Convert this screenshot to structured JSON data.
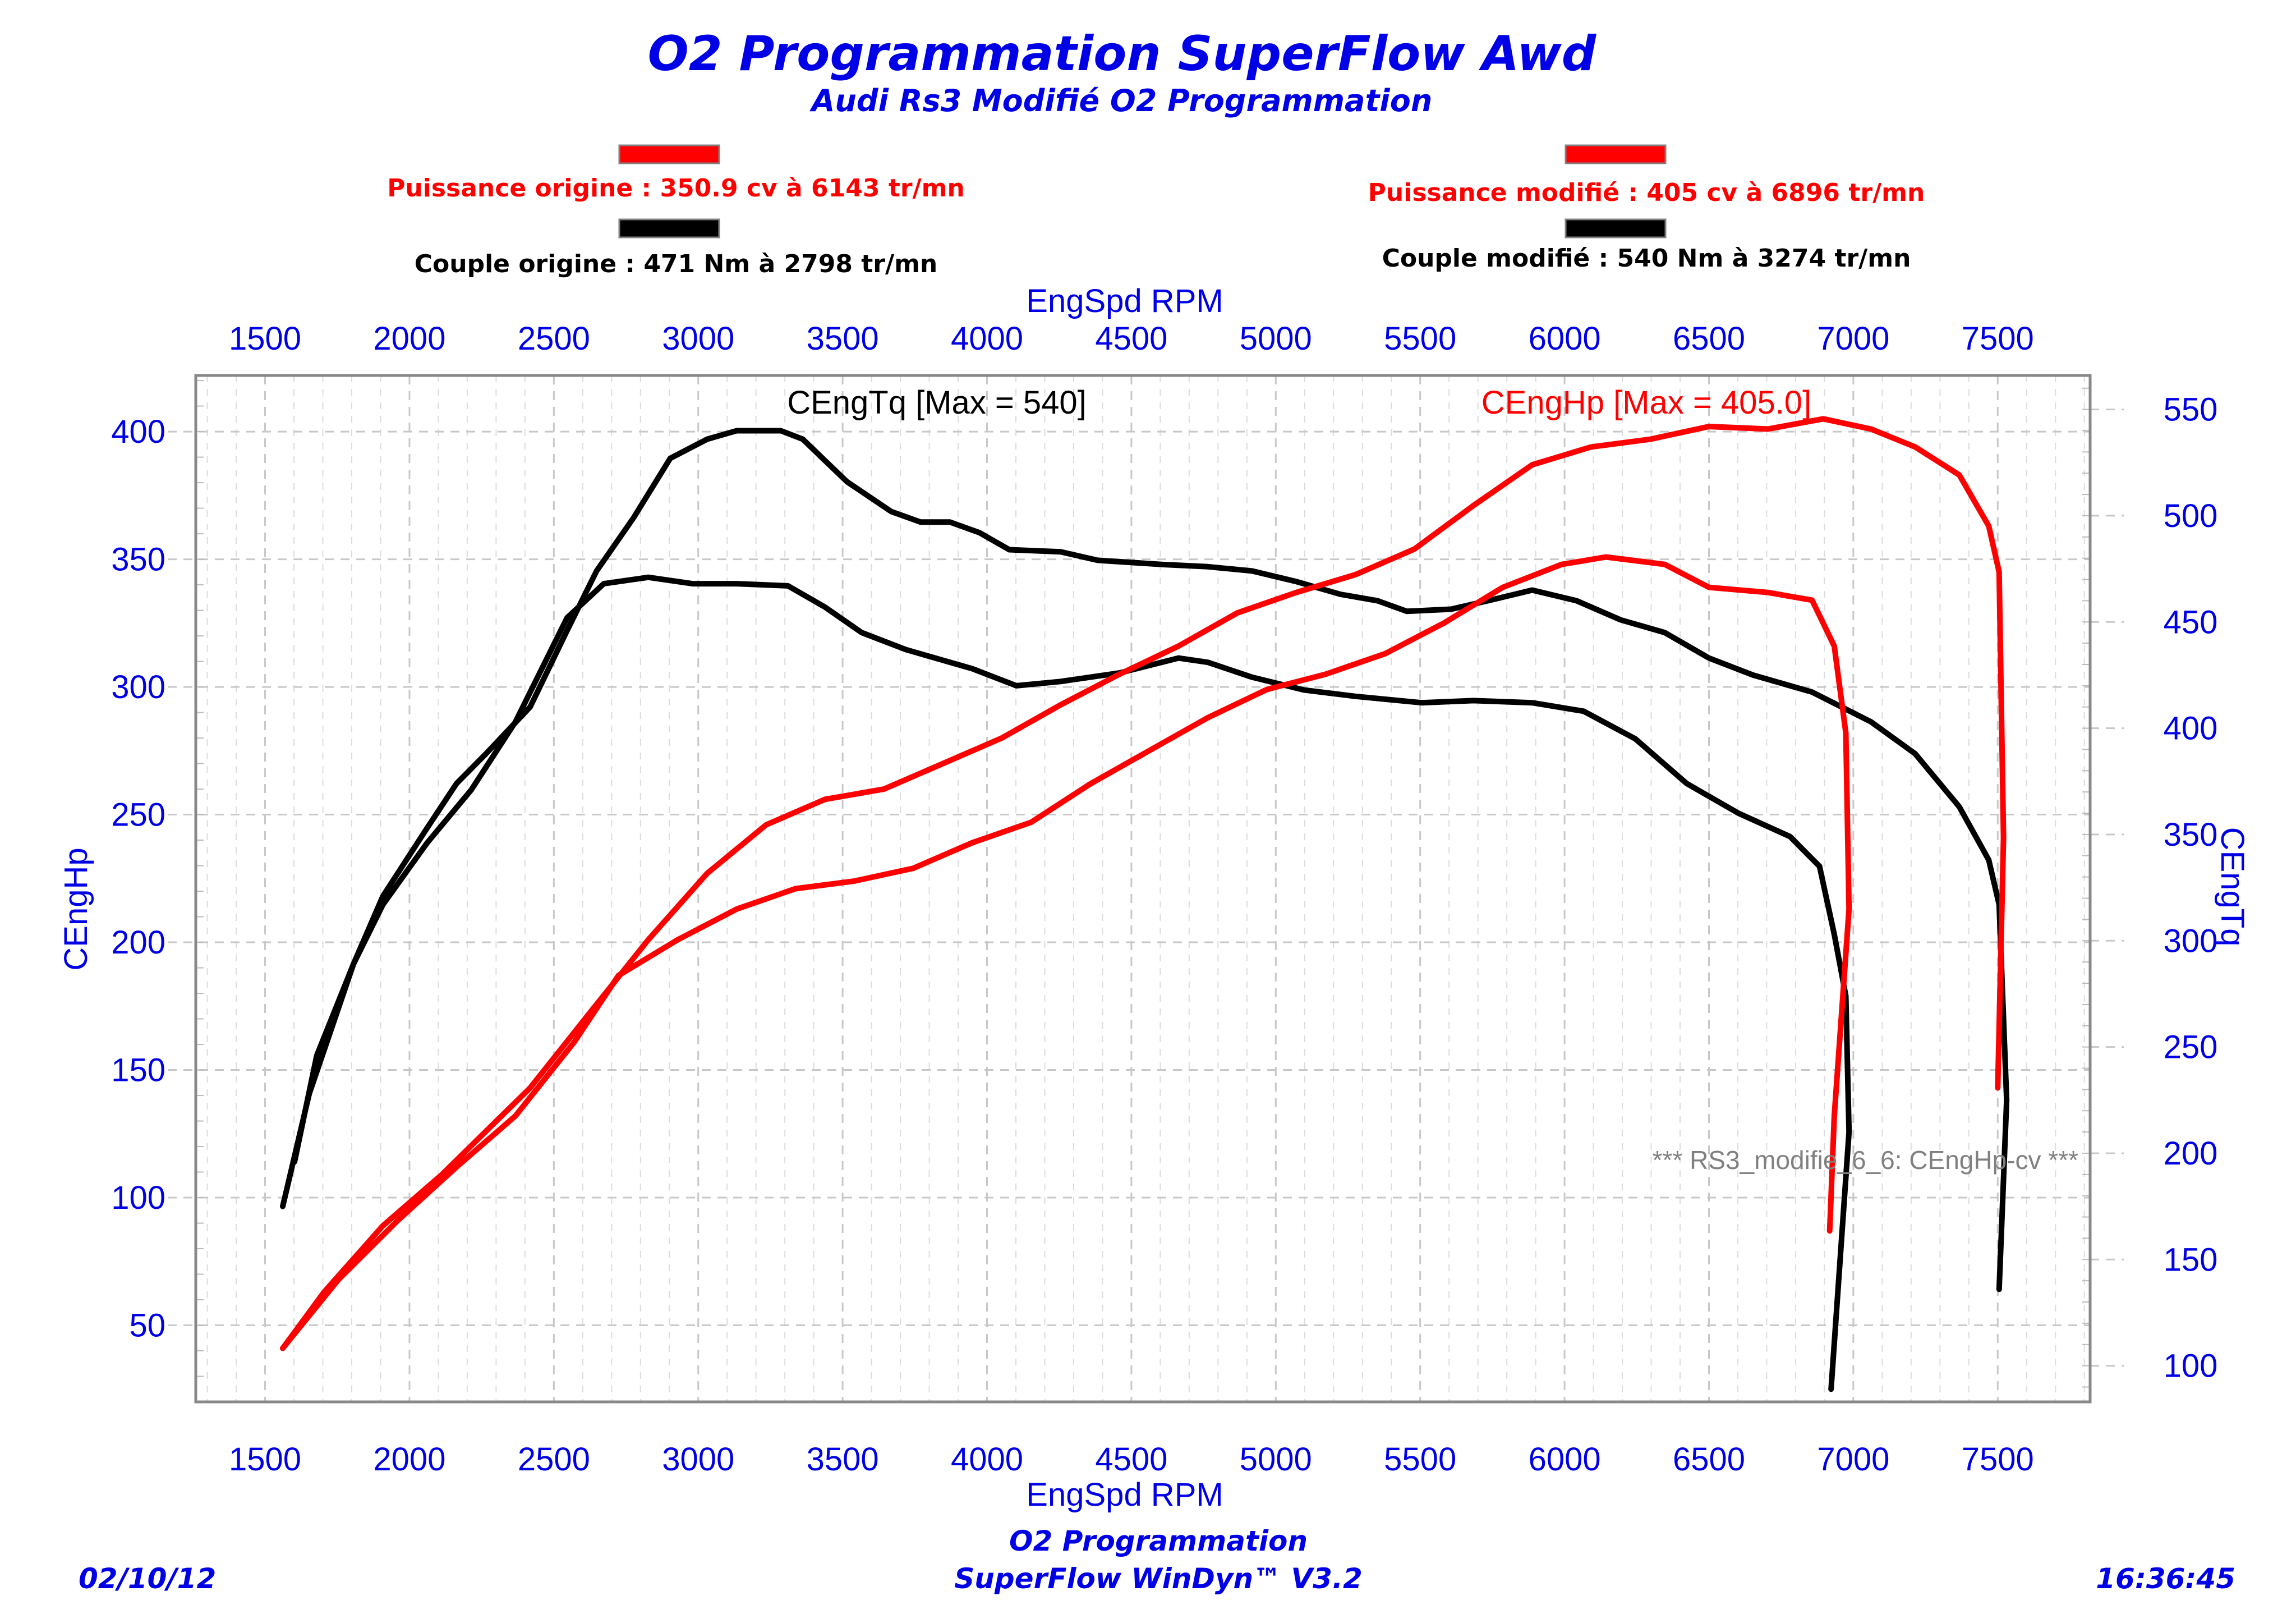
{
  "header": {
    "title": "O2 Programmation SuperFlow Awd",
    "subtitle": "Audi Rs3 Modifié O2 Programmation"
  },
  "legend": {
    "left": {
      "power": {
        "text": "Puissance origine : 350.9 cv à 6143 tr/mn",
        "color": "#ff0000"
      },
      "torque": {
        "text": "Couple origine : 471 Nm à 2798 tr/mn",
        "color": "#000000"
      }
    },
    "right": {
      "power": {
        "text": "Puissance modifié : 405 cv à 6896 tr/mn",
        "color": "#ff0000"
      },
      "torque": {
        "text": "Couple modifié : 540 Nm à 3274 tr/mn",
        "color": "#000000"
      }
    }
  },
  "footer": {
    "date": "02/10/12",
    "company": "O2 Programmation",
    "software": "SuperFlow WinDyn™ V3.2",
    "time": "16:36:45"
  },
  "chart_data": {
    "type": "line",
    "title": "O2 Programmation SuperFlow Awd",
    "subtitle": "Audi Rs3 Modifié O2 Programmation",
    "xlabel": "EngSpd RPM",
    "ylabel": "CEngHp",
    "y2label": "CEngTq",
    "xlim": [
      1260,
      7820
    ],
    "ylim": [
      20,
      422
    ],
    "y2lim": [
      83,
      566
    ],
    "x_ticks": [
      "1500",
      "2000",
      "2500",
      "3000",
      "3500",
      "4000",
      "4500",
      "5000",
      "5500",
      "6000",
      "6500",
      "7000",
      "7500"
    ],
    "y_ticks": [
      "50",
      "100",
      "150",
      "200",
      "250",
      "300",
      "350",
      "400"
    ],
    "y2_ticks": [
      "100",
      "150",
      "200",
      "250",
      "300",
      "350",
      "400",
      "450",
      "500",
      "550"
    ],
    "grid": true,
    "series_labels": {
      "torque": "CEngTq [Max = 540]",
      "power": "CEngHp [Max = 405.0]"
    },
    "annotation": "*** RS3_modifie_6_6: CEngHp-cv ***",
    "series": [
      {
        "name": "Couple modifié (CEngTq)",
        "axis": "right",
        "color": "#000000",
        "x": [
          1602,
          1679,
          1806,
          1908,
          2061,
          2163,
          2265,
          2418,
          2546,
          2648,
          2776,
          2903,
          3031,
          3133,
          3286,
          3362,
          3515,
          3668,
          3770,
          3872,
          3974,
          4077,
          4255,
          4383,
          4612,
          4765,
          4918,
          5071,
          5224,
          5352,
          5454,
          5607,
          5735,
          5888,
          6041,
          6194,
          6347,
          6500,
          6653,
          6857,
          7061,
          7214,
          7367,
          7469,
          7505,
          7531,
          7505
        ],
        "y": [
          196,
          246,
          289,
          321,
          353,
          374,
          388,
          410,
          446,
          474,
          499,
          527,
          536,
          540,
          540,
          536,
          516,
          502,
          497,
          497,
          492,
          484,
          483,
          479,
          477,
          476,
          474,
          469,
          463,
          460,
          455,
          456,
          460,
          465,
          460,
          451,
          445,
          433,
          425,
          417,
          403,
          388,
          363,
          338,
          317,
          225,
          136
        ]
      },
      {
        "name": "Couple origine (CEngTq)",
        "axis": "right",
        "color": "#000000",
        "x": [
          1561,
          1653,
          1806,
          1908,
          2061,
          2214,
          2367,
          2546,
          2673,
          2827,
          2980,
          3133,
          3311,
          3439,
          3566,
          3719,
          3949,
          4102,
          4255,
          4459,
          4663,
          4765,
          4918,
          5097,
          5276,
          5505,
          5684,
          5888,
          6066,
          6245,
          6423,
          6602,
          6781,
          6883,
          6934,
          6974,
          6985,
          6923
        ],
        "y": [
          175,
          228,
          289,
          317,
          346,
          371,
          403,
          452,
          468,
          471,
          468,
          468,
          467,
          457,
          445,
          437,
          428,
          420,
          422,
          426,
          433,
          431,
          424,
          418,
          415,
          412,
          413,
          412,
          408,
          395,
          374,
          360,
          349,
          335,
          303,
          274,
          210,
          89
        ]
      },
      {
        "name": "Puissance modifié (CEngHp)",
        "axis": "left",
        "color": "#ff0000",
        "x": [
          1561,
          1704,
          1908,
          2112,
          2265,
          2418,
          2622,
          2827,
          3031,
          3235,
          3439,
          3643,
          3847,
          4051,
          4255,
          4459,
          4663,
          4867,
          5071,
          5276,
          5480,
          5684,
          5888,
          6092,
          6296,
          6500,
          6704,
          6896,
          7061,
          7214,
          7367,
          7469,
          7505,
          7520,
          7500
        ],
        "y": [
          41,
          63,
          89,
          109,
          126,
          143,
          172,
          201,
          227,
          246,
          256,
          260,
          270,
          280,
          293,
          305,
          316,
          329,
          337,
          344,
          354,
          371,
          387,
          394,
          397,
          402,
          401,
          405,
          401,
          394,
          383,
          363,
          345,
          241,
          143
        ]
      },
      {
        "name": "Puissance origine (CEngHp)",
        "axis": "left",
        "color": "#ff0000",
        "x": [
          1561,
          1755,
          1959,
          2163,
          2367,
          2571,
          2724,
          2929,
          3133,
          3337,
          3541,
          3745,
          3949,
          4153,
          4357,
          4561,
          4765,
          4969,
          5173,
          5378,
          5582,
          5786,
          5990,
          6143,
          6347,
          6500,
          6704,
          6857,
          6934,
          6974,
          6985,
          6934,
          6918
        ],
        "y": [
          41,
          68,
          91,
          112,
          132,
          161,
          187,
          201,
          213,
          221,
          224,
          229,
          239,
          247,
          262,
          275,
          288,
          299,
          305,
          313,
          325,
          339,
          348,
          350.9,
          348,
          339,
          337,
          334,
          316,
          282,
          213,
          132,
          87
        ]
      }
    ]
  }
}
